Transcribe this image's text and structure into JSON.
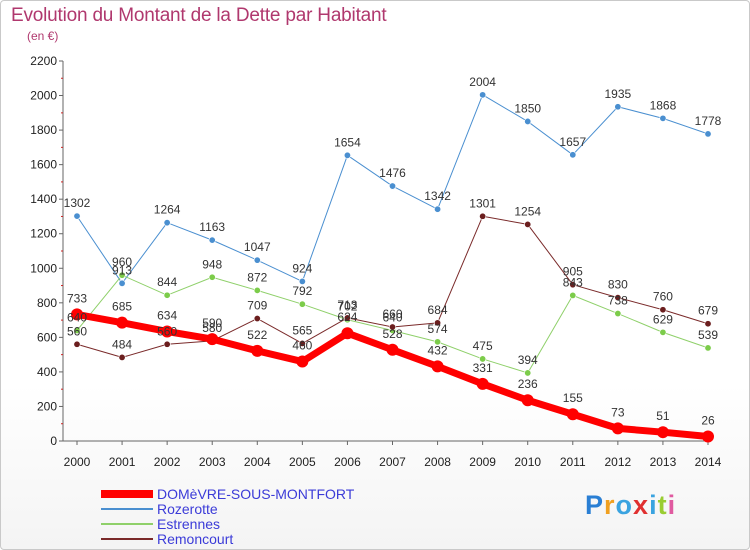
{
  "header": {
    "title": "Evolution du Montant de la Dette par Habitant",
    "subtitle": "(en €)"
  },
  "logo": {
    "letters": [
      "P",
      "r",
      "o",
      "x",
      "i",
      "t",
      "i"
    ],
    "colors": [
      "#2a7fd4",
      "#f0a020",
      "#3aa3e0",
      "#e03030",
      "#3aa3e0",
      "#9acd32",
      "#e05aa0"
    ]
  },
  "chart_data": {
    "type": "line",
    "title": "Evolution du Montant de la Dette par Habitant",
    "subtitle": "(en €)",
    "x": [
      "2000",
      "2001",
      "2002",
      "2003",
      "2004",
      "2005",
      "2006",
      "2007",
      "2008",
      "2009",
      "2010",
      "2011",
      "2012",
      "2013",
      "2014"
    ],
    "yticks": [
      "0",
      "200",
      "400",
      "600",
      "800",
      "1000",
      "1200",
      "1400",
      "1600",
      "1800",
      "2000",
      "2200"
    ],
    "ylim": [
      0,
      2200
    ],
    "grid": false,
    "legend_position": "bottom-left",
    "series": [
      {
        "name": "Rozerotte",
        "color": "#4a8fd0",
        "point_color": "#4a8fd0",
        "width": 1,
        "values": [
          1302,
          913,
          1264,
          1163,
          1047,
          924,
          1654,
          1476,
          1342,
          2004,
          1850,
          1657,
          1935,
          1868,
          1778
        ]
      },
      {
        "name": "Estrennes",
        "color": "#8fd06a",
        "point_color": "#7ccc4a",
        "width": 1,
        "values": [
          640,
          960,
          844,
          948,
          872,
          792,
          702,
          640,
          574,
          475,
          394,
          843,
          738,
          629,
          539
        ]
      },
      {
        "name": "Remoncourt",
        "color": "#7a2a2a",
        "point_color": "#6b1e1e",
        "width": 1,
        "values": [
          560,
          484,
          560,
          580,
          709,
          565,
          713,
          660,
          684,
          1301,
          1254,
          905,
          830,
          760,
          679
        ]
      },
      {
        "name": "DOMèVRE-SOUS-MONTFORT",
        "color": "#ff0000",
        "point_color": "#ff0000",
        "width": 7,
        "values": [
          733,
          685,
          634,
          590,
          522,
          460,
          624,
          528,
          432,
          331,
          236,
          155,
          73,
          51,
          26
        ]
      }
    ]
  }
}
